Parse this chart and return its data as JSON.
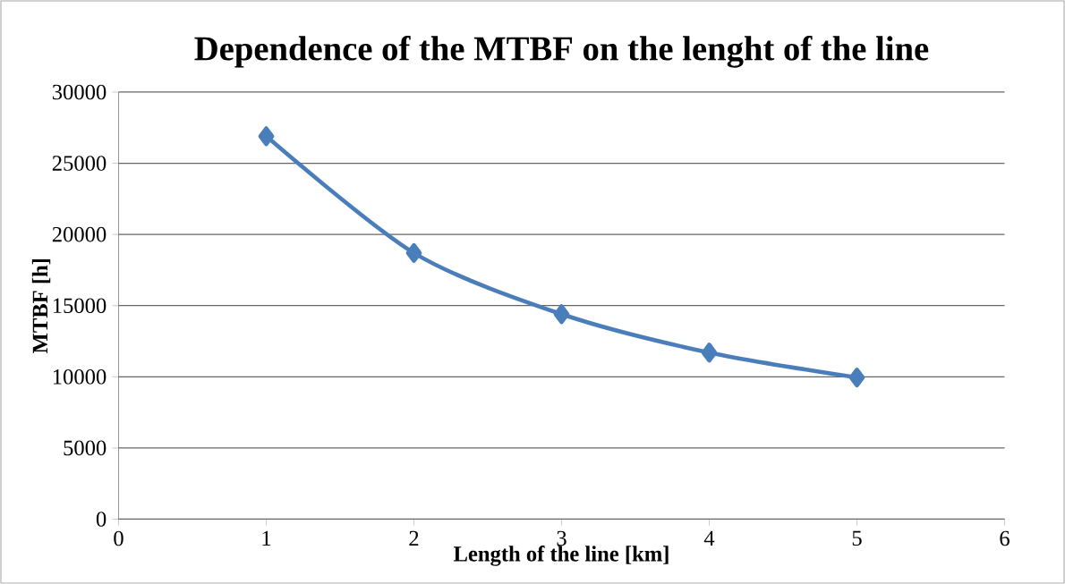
{
  "chart_data": {
    "type": "line",
    "title": "Dependence of the MTBF on the lenght of the line",
    "xlabel": "Length of the line [km]",
    "ylabel": "MTBF [h]",
    "x": [
      1,
      2,
      3,
      4,
      5
    ],
    "series": [
      {
        "color": "#4a7ebb",
        "values": [
          26900,
          18700,
          14400,
          11700,
          9950
        ]
      }
    ],
    "xlim": [
      0,
      6
    ],
    "xticks": [
      0,
      1,
      2,
      3,
      4,
      5,
      6
    ],
    "ylim": [
      0,
      30000
    ],
    "yticks": [
      0,
      5000,
      10000,
      15000,
      20000,
      25000,
      30000
    ],
    "grid": "y",
    "marker": "diamond",
    "line_style": "solid"
  }
}
